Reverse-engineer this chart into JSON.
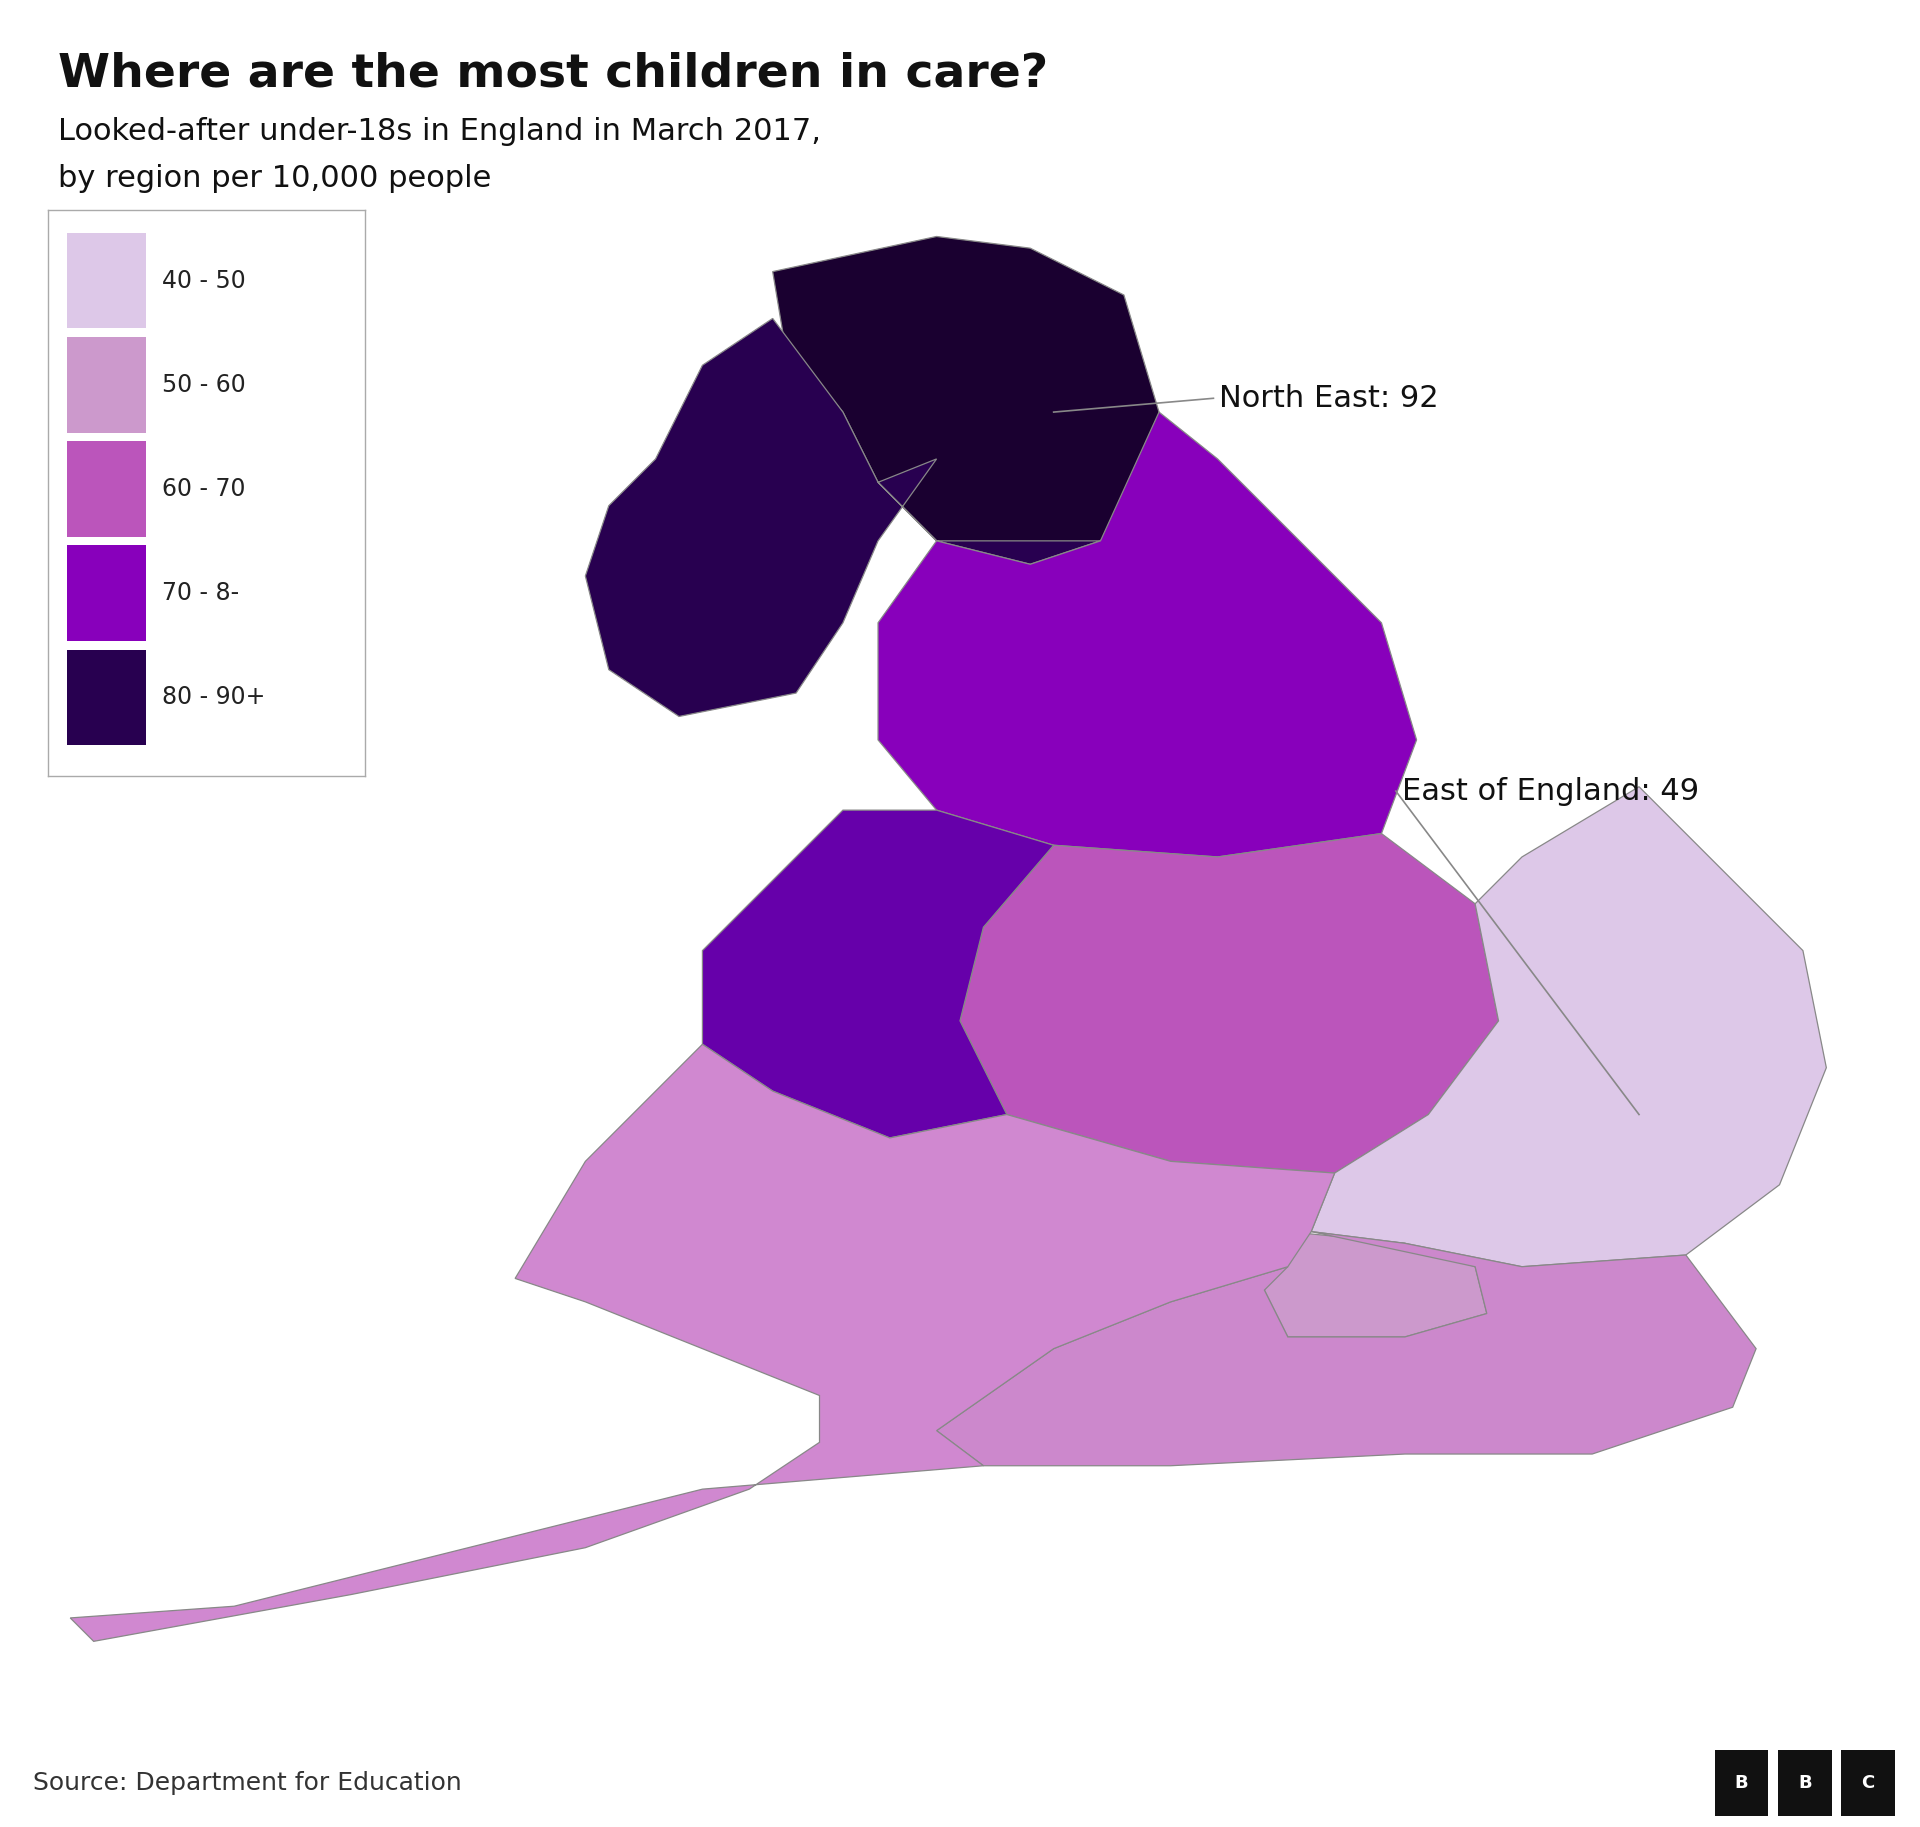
{
  "title": "Where are the most children in care?",
  "subtitle_line1": "Looked-after under-18s in England in March 2017,",
  "subtitle_line2": "by region per 10,000 people",
  "source": "Source: Department for Education",
  "region_colors": {
    "North East": "#1a0030",
    "North West": "#280050",
    "Yorkshire and The Humber": "#8800bb",
    "East Midlands": "#bb55bb",
    "West Midlands": "#6600aa",
    "East of England": "#ddc8e8",
    "London": "#cc99cc",
    "South East": "#cc88cc",
    "South West": "#d088d0"
  },
  "legend_labels": [
    "40 - 50",
    "50 - 60",
    "60 - 70",
    "70 - 8-",
    "80 - 90+"
  ],
  "legend_colors": [
    "#ddc8e8",
    "#cc99cc",
    "#bb55bb",
    "#8800bb",
    "#280050"
  ],
  "annotation_ne_text": "North East: 92",
  "annotation_east_text": "East of England: 49",
  "background_color": "#ffffff",
  "border_color": "#888888",
  "footer_bg": "#e6e6e6",
  "title_fontsize": 34,
  "subtitle_fontsize": 22,
  "source_fontsize": 18,
  "legend_fontsize": 17,
  "annotation_fontsize": 22
}
